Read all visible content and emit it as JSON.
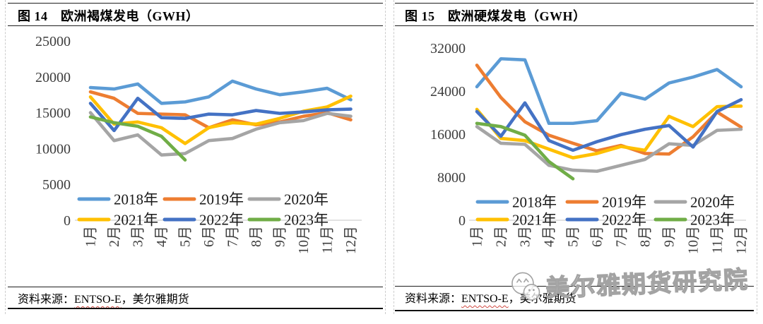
{
  "panels": [
    {
      "fig_label": "图 14",
      "title": "图 14　欧洲褐煤发电（GWH）",
      "source": {
        "prefix": "资料来源：",
        "org": "ENTSO-E",
        "suffix": "，美尔雅期货"
      }
    },
    {
      "fig_label": "图 15",
      "title": "图 15　欧洲硬煤发电（GWH）",
      "source": {
        "prefix": "资料来源：",
        "org": "ENTSO-E",
        "suffix": "，美尔雅期货"
      }
    }
  ],
  "watermark": {
    "text": "美尔雅期货研究院",
    "logo": "panda-face-logo",
    "color": "#a3a3a3"
  },
  "chart_data": [
    {
      "type": "line",
      "title": "欧洲褐煤发电（GWH）",
      "categories": [
        "1月",
        "2月",
        "3月",
        "4月",
        "5月",
        "6月",
        "7月",
        "8月",
        "9月",
        "10月",
        "11月",
        "12月"
      ],
      "xlabel": "",
      "ylabel": "",
      "ylim": [
        0,
        25000
      ],
      "yticks": [
        0,
        5000,
        10000,
        15000,
        20000,
        25000
      ],
      "grid": false,
      "x_label_rotation": 90,
      "legend_position": "bottom-inside",
      "series": [
        {
          "name": "2018年",
          "color": "#5B9BD5",
          "values": [
            18500,
            18300,
            19000,
            16300,
            16500,
            17200,
            19400,
            18300,
            17500,
            17900,
            18400,
            16800
          ]
        },
        {
          "name": "2019年",
          "color": "#ED7D31",
          "values": [
            17900,
            17000,
            14900,
            14800,
            14700,
            12900,
            14000,
            13300,
            13700,
            14500,
            15000,
            14000
          ]
        },
        {
          "name": "2020年",
          "color": "#A5A5A5",
          "values": [
            15000,
            11100,
            11900,
            9100,
            9300,
            11100,
            11400,
            12700,
            13600,
            13900,
            14900,
            14500
          ]
        },
        {
          "name": "2021年",
          "color": "#FFC000",
          "values": [
            17200,
            13400,
            13700,
            12900,
            10700,
            12900,
            13600,
            13400,
            14200,
            15200,
            15800,
            17300
          ]
        },
        {
          "name": "2022年",
          "color": "#4472C4",
          "values": [
            16300,
            12500,
            17000,
            14300,
            14200,
            14800,
            14700,
            15300,
            14900,
            15100,
            15400,
            15500
          ]
        },
        {
          "name": "2023年",
          "color": "#70AD47",
          "values": [
            14400,
            13600,
            13100,
            11700,
            8400
          ]
        }
      ]
    },
    {
      "type": "line",
      "title": "欧洲硬煤发电（GWH）",
      "categories": [
        "1月",
        "2月",
        "3月",
        "4月",
        "5月",
        "6月",
        "7月",
        "8月",
        "9月",
        "10月",
        "11月",
        "12月"
      ],
      "xlabel": "",
      "ylabel": "",
      "ylim": [
        0,
        32000
      ],
      "yticks": [
        0,
        8000,
        16000,
        24000,
        32000
      ],
      "grid": false,
      "x_label_rotation": 90,
      "legend_position": "bottom-inside",
      "series": [
        {
          "name": "2018年",
          "color": "#5B9BD5",
          "values": [
            24800,
            30000,
            29800,
            18000,
            18000,
            18500,
            23600,
            22500,
            25500,
            26600,
            28000,
            24800
          ]
        },
        {
          "name": "2019年",
          "color": "#ED7D31",
          "values": [
            28800,
            22800,
            18300,
            15800,
            14300,
            12900,
            13900,
            12400,
            12300,
            15500,
            20100,
            17300
          ]
        },
        {
          "name": "2020年",
          "color": "#A5A5A5",
          "values": [
            17400,
            14300,
            14100,
            10200,
            9300,
            9100,
            10200,
            11300,
            14200,
            13900,
            16700,
            16900
          ]
        },
        {
          "name": "2021年",
          "color": "#FFC000",
          "values": [
            20600,
            15200,
            14800,
            13200,
            11600,
            12400,
            13700,
            13000,
            19300,
            17400,
            21100,
            21200
          ]
        },
        {
          "name": "2022年",
          "color": "#4472C4",
          "values": [
            20200,
            15600,
            21800,
            14800,
            13000,
            14600,
            15900,
            16900,
            17600,
            13600,
            20200,
            22400
          ]
        },
        {
          "name": "2023年",
          "color": "#70AD47",
          "values": [
            18000,
            17400,
            15800,
            10900,
            7700
          ]
        }
      ]
    }
  ]
}
